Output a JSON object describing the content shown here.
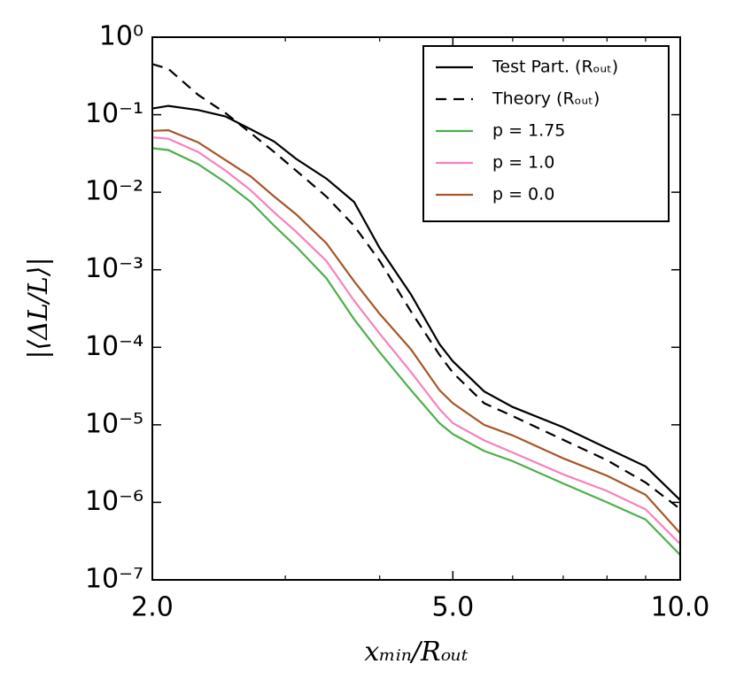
{
  "chart_data": {
    "type": "line",
    "xlabel": "xₘᵢₙ/Rₒᵤₜ",
    "ylabel": "|⟨ΔL/L⟩|",
    "xscale": "log",
    "yscale": "log",
    "x": [
      2.0,
      2.1,
      2.3,
      2.5,
      2.7,
      2.9,
      3.1,
      3.4,
      3.7,
      4.0,
      4.4,
      4.8,
      5.0,
      5.5,
      6.0,
      7.0,
      8.0,
      9.0,
      10.0
    ],
    "series": [
      {
        "name": "Test Part. (Rₒᵤₜ)",
        "color": "#000000",
        "dashed": false,
        "values": [
          0.12,
          0.13,
          0.115,
          0.095,
          0.065,
          0.045,
          0.027,
          0.015,
          0.0075,
          0.0019,
          0.00048,
          0.00011,
          6.6e-05,
          2.7e-05,
          1.7e-05,
          9.3e-06,
          5e-06,
          2.9e-06,
          1.07e-06
        ]
      },
      {
        "name": "Theory (Rₒᵤₜ)",
        "color": "#000000",
        "dashed": true,
        "values": [
          0.45,
          0.39,
          0.18,
          0.105,
          0.058,
          0.033,
          0.019,
          0.0088,
          0.0037,
          0.0013,
          0.00029,
          8e-05,
          4.7e-05,
          1.9e-05,
          1.3e-05,
          6.4e-06,
          3.5e-06,
          1.8e-06,
          8.2e-07
        ]
      },
      {
        "name": "p = 1.75",
        "color": "#4daf4a",
        "dashed": false,
        "values": [
          0.037,
          0.035,
          0.023,
          0.0134,
          0.0075,
          0.0037,
          0.002,
          0.00078,
          0.00023,
          8.6e-05,
          2.8e-05,
          1.05e-05,
          7.6e-06,
          4.6e-06,
          3.4e-06,
          1.75e-06,
          1e-06,
          6e-07,
          2.1e-07
        ]
      },
      {
        "name": "p = 1.0",
        "color": "#f781bf",
        "dashed": false,
        "values": [
          0.051,
          0.049,
          0.033,
          0.019,
          0.0106,
          0.0055,
          0.0031,
          0.0013,
          0.0004,
          0.00015,
          4.8e-05,
          1.6e-05,
          1.05e-05,
          6.3e-06,
          4.4e-06,
          2.3e-06,
          1.4e-06,
          8.1e-07,
          2.9e-07
        ]
      },
      {
        "name": "p = 0.0",
        "color": "#a65628",
        "dashed": false,
        "values": [
          0.062,
          0.063,
          0.044,
          0.026,
          0.016,
          0.0088,
          0.0052,
          0.0022,
          0.00071,
          0.00027,
          9.4e-05,
          2.8e-05,
          1.9e-05,
          1e-05,
          7.3e-06,
          3.7e-06,
          2.2e-06,
          1.25e-06,
          4e-07
        ]
      }
    ],
    "xlim": [
      2.0,
      10.0
    ],
    "xticks": [
      {
        "value": 2.0,
        "label": "2.0"
      },
      {
        "value": 5.0,
        "label": "5.0"
      },
      {
        "value": 10.0,
        "label": "10.0"
      }
    ],
    "xminorticks": [
      3,
      4,
      6,
      7,
      8,
      9
    ],
    "ylim": [
      1e-07,
      1
    ],
    "yticks": [
      {
        "value": 1e-07,
        "label": "10⁻⁷"
      },
      {
        "value": 1e-06,
        "label": "10⁻⁶"
      },
      {
        "value": 1e-05,
        "label": "10⁻⁵"
      },
      {
        "value": 0.0001,
        "label": "10⁻⁴"
      },
      {
        "value": 0.001,
        "label": "10⁻³"
      },
      {
        "value": 0.01,
        "label": "10⁻²"
      },
      {
        "value": 0.1,
        "label": "10⁻¹"
      },
      {
        "value": 1,
        "label": "10⁰"
      }
    ],
    "legend": "upper right",
    "grid": false
  }
}
